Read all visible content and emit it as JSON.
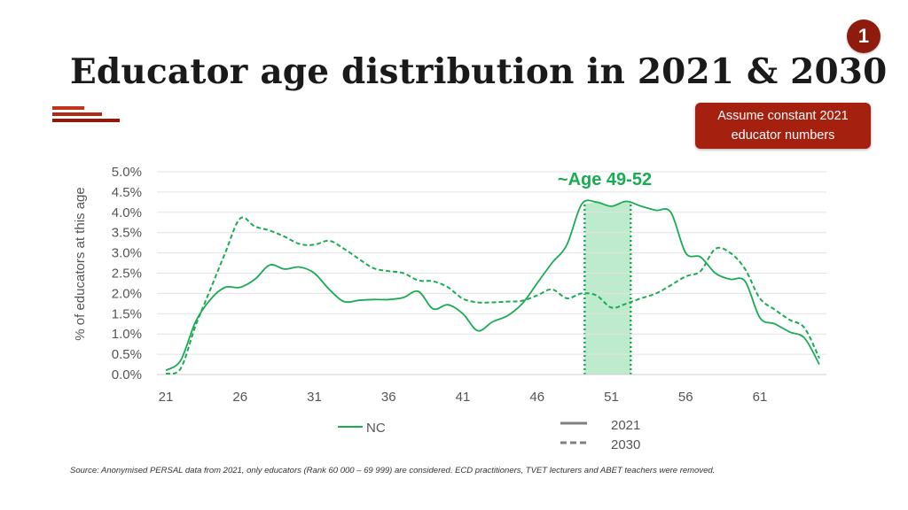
{
  "page_number": "1",
  "title": "Educator age distribution in 2021 & 2030",
  "note": "Assume constant 2021 educator numbers",
  "source": "Source: Anonymised PERSAL data from 2021, only educators (Rank 60 000 – 69 999) are considered. ECD practitioners, TVET lecturers and ABET teachers were removed.",
  "colors": {
    "accent": "#a5200e",
    "badge": "#8e1b0c",
    "series": "#1aac52",
    "highlight": "#b3e6c4",
    "legend_gray": "#808080"
  },
  "chart_data": {
    "type": "line",
    "title": "",
    "xlabel": "",
    "ylabel": "% of educators at this age",
    "xlim": [
      21,
      65
    ],
    "ylim": [
      0,
      5.0
    ],
    "x_ticks": [
      21,
      26,
      31,
      36,
      41,
      46,
      51,
      56,
      61
    ],
    "x_tick_labels": [
      "21",
      "26",
      "31",
      "36",
      "41",
      "46",
      "51",
      "56",
      "61"
    ],
    "y_ticks": [
      0,
      0.5,
      1.0,
      1.5,
      2.0,
      2.5,
      3.0,
      3.5,
      4.0,
      4.5,
      5.0
    ],
    "y_tick_labels": [
      "0.0%",
      "0.5%",
      "1.0%",
      "1.5%",
      "2.0%",
      "2.5%",
      "3.0%",
      "3.5%",
      "4.0%",
      "4.5%",
      "5.0%"
    ],
    "grid": true,
    "highlight": {
      "x_start": 49.2,
      "x_end": 52.3,
      "label": "~Age 49-52"
    },
    "legend": {
      "series_name": "NC",
      "style_labels": [
        "2021",
        "2030"
      ]
    },
    "series": [
      {
        "name": "NC 2021",
        "style": "solid",
        "x": [
          21,
          22,
          23,
          24,
          25,
          26,
          27,
          28,
          29,
          30,
          31,
          32,
          33,
          34,
          35,
          36,
          37,
          38,
          39,
          40,
          41,
          42,
          43,
          44,
          45,
          46,
          47,
          48,
          49,
          50,
          51,
          52,
          53,
          54,
          55,
          56,
          57,
          58,
          59,
          60,
          61,
          62,
          63,
          64,
          65
        ],
        "y": [
          0.1,
          0.35,
          1.3,
          1.85,
          2.15,
          2.15,
          2.35,
          2.7,
          2.6,
          2.65,
          2.5,
          2.1,
          1.8,
          1.83,
          1.85,
          1.85,
          1.9,
          2.05,
          1.62,
          1.72,
          1.5,
          1.08,
          1.3,
          1.45,
          1.75,
          2.25,
          2.75,
          3.2,
          4.2,
          4.25,
          4.15,
          4.27,
          4.15,
          4.05,
          4.0,
          3.0,
          2.9,
          2.5,
          2.35,
          2.3,
          1.4,
          1.25,
          1.05,
          0.9,
          0.25
        ]
      },
      {
        "name": "NC 2030",
        "style": "dashed",
        "x": [
          21,
          22,
          23,
          24,
          25,
          26,
          27,
          28,
          29,
          30,
          31,
          32,
          33,
          34,
          35,
          36,
          37,
          38,
          39,
          40,
          41,
          42,
          43,
          44,
          45,
          46,
          47,
          48,
          49,
          50,
          51,
          52,
          53,
          54,
          55,
          56,
          57,
          58,
          59,
          60,
          61,
          62,
          63,
          64,
          65
        ],
        "y": [
          0.02,
          0.15,
          1.2,
          2.1,
          3.0,
          3.85,
          3.65,
          3.55,
          3.4,
          3.22,
          3.2,
          3.3,
          3.1,
          2.85,
          2.62,
          2.55,
          2.5,
          2.32,
          2.3,
          2.15,
          1.87,
          1.78,
          1.78,
          1.8,
          1.82,
          1.95,
          2.1,
          1.88,
          2.0,
          1.95,
          1.65,
          1.75,
          1.88,
          2.0,
          2.2,
          2.42,
          2.55,
          3.1,
          3.0,
          2.6,
          1.88,
          1.6,
          1.35,
          1.15,
          0.4
        ]
      }
    ]
  }
}
